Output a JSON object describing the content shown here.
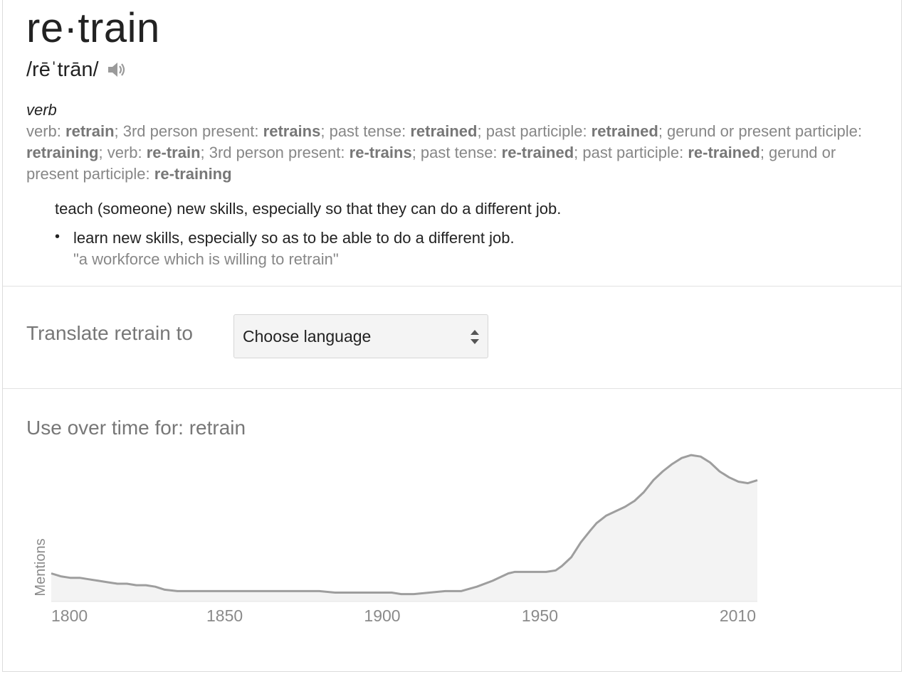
{
  "entry": {
    "headword": "re·train",
    "pronunciation": "/rēˈtrān/",
    "speaker_icon": "speaker-icon",
    "part_of_speech": "verb",
    "inflections": [
      {
        "text": "verb: ",
        "bold": false
      },
      {
        "text": "retrain",
        "bold": true
      },
      {
        "text": "; 3rd person present: ",
        "bold": false
      },
      {
        "text": "retrains",
        "bold": true
      },
      {
        "text": "; past tense: ",
        "bold": false
      },
      {
        "text": "retrained",
        "bold": true
      },
      {
        "text": "; past participle: ",
        "bold": false
      },
      {
        "text": "retrained",
        "bold": true
      },
      {
        "text": "; gerund or present participle: ",
        "bold": false
      },
      {
        "text": "retraining",
        "bold": true
      },
      {
        "text": "; verb: ",
        "bold": false
      },
      {
        "text": "re-train",
        "bold": true
      },
      {
        "text": "; 3rd person present: ",
        "bold": false
      },
      {
        "text": "re-trains",
        "bold": true
      },
      {
        "text": "; past tense: ",
        "bold": false
      },
      {
        "text": "re-trained",
        "bold": true
      },
      {
        "text": "; past participle: ",
        "bold": false
      },
      {
        "text": "re-trained",
        "bold": true
      },
      {
        "text": "; gerund or present participle: ",
        "bold": false
      },
      {
        "text": "re-training",
        "bold": true
      }
    ],
    "definition": "teach (someone) new skills, especially so that they can do a different job.",
    "sub_definition": "learn new skills, especially so as to be able to do a different job.",
    "example": "\"a workforce which is willing to retrain\""
  },
  "translate": {
    "label": "Translate retrain to",
    "select_value": "Choose language"
  },
  "usage": {
    "title": "Use over time for: retrain"
  },
  "colors": {
    "line": "#9e9e9e",
    "fill": "#f3f3f3",
    "axis_text": "#8a8a8a"
  },
  "chart_data": {
    "type": "area",
    "title": "Use over time for: retrain",
    "ylabel": "Mentions",
    "xlabel": "",
    "xlim": [
      1795,
      2019
    ],
    "ylim": [
      0,
      100
    ],
    "x_ticks": [
      1800,
      1850,
      1900,
      1950,
      2010
    ],
    "x": [
      1795,
      1798,
      1801,
      1804,
      1807,
      1810,
      1813,
      1816,
      1819,
      1822,
      1825,
      1828,
      1831,
      1835,
      1840,
      1845,
      1850,
      1855,
      1860,
      1865,
      1870,
      1875,
      1880,
      1885,
      1890,
      1895,
      1900,
      1903,
      1906,
      1910,
      1915,
      1920,
      1925,
      1930,
      1935,
      1938,
      1940,
      1942,
      1945,
      1948,
      1950,
      1952,
      1955,
      1957,
      1960,
      1963,
      1966,
      1968,
      1971,
      1974,
      1977,
      1980,
      1983,
      1986,
      1989,
      1992,
      1995,
      1998,
      2001,
      2004,
      2007,
      2010,
      2013,
      2016,
      2019
    ],
    "values": [
      19,
      17,
      16,
      16,
      15,
      14,
      13,
      12,
      12,
      11,
      11,
      10,
      8,
      7,
      7,
      7,
      7,
      7,
      7,
      7,
      7,
      7,
      7,
      6,
      6,
      6,
      6,
      6,
      5,
      5,
      6,
      7,
      7,
      10,
      14,
      17,
      19,
      20,
      20,
      20,
      20,
      20,
      21,
      24,
      30,
      40,
      48,
      53,
      58,
      61,
      64,
      68,
      74,
      82,
      88,
      93,
      97,
      99,
      98,
      94,
      88,
      84,
      81,
      80,
      82
    ]
  }
}
